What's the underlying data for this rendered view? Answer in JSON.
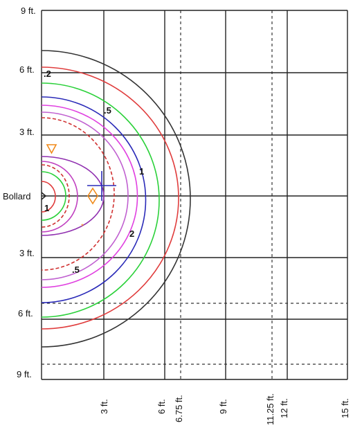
{
  "left_labels": [
    "9 ft.",
    "6 ft.",
    "3 ft.",
    "Bollard",
    "3 ft.",
    "6 ft.",
    "9 ft."
  ],
  "bottom_labels": [
    "3 ft.",
    "6 ft.",
    "6.75 ft.",
    "9 ft.",
    "11.25 ft.",
    "12 ft.",
    "15 ft."
  ],
  "contour_labels": [
    ".2",
    ".5",
    "1",
    "2",
    ".5",
    "1"
  ]
}
